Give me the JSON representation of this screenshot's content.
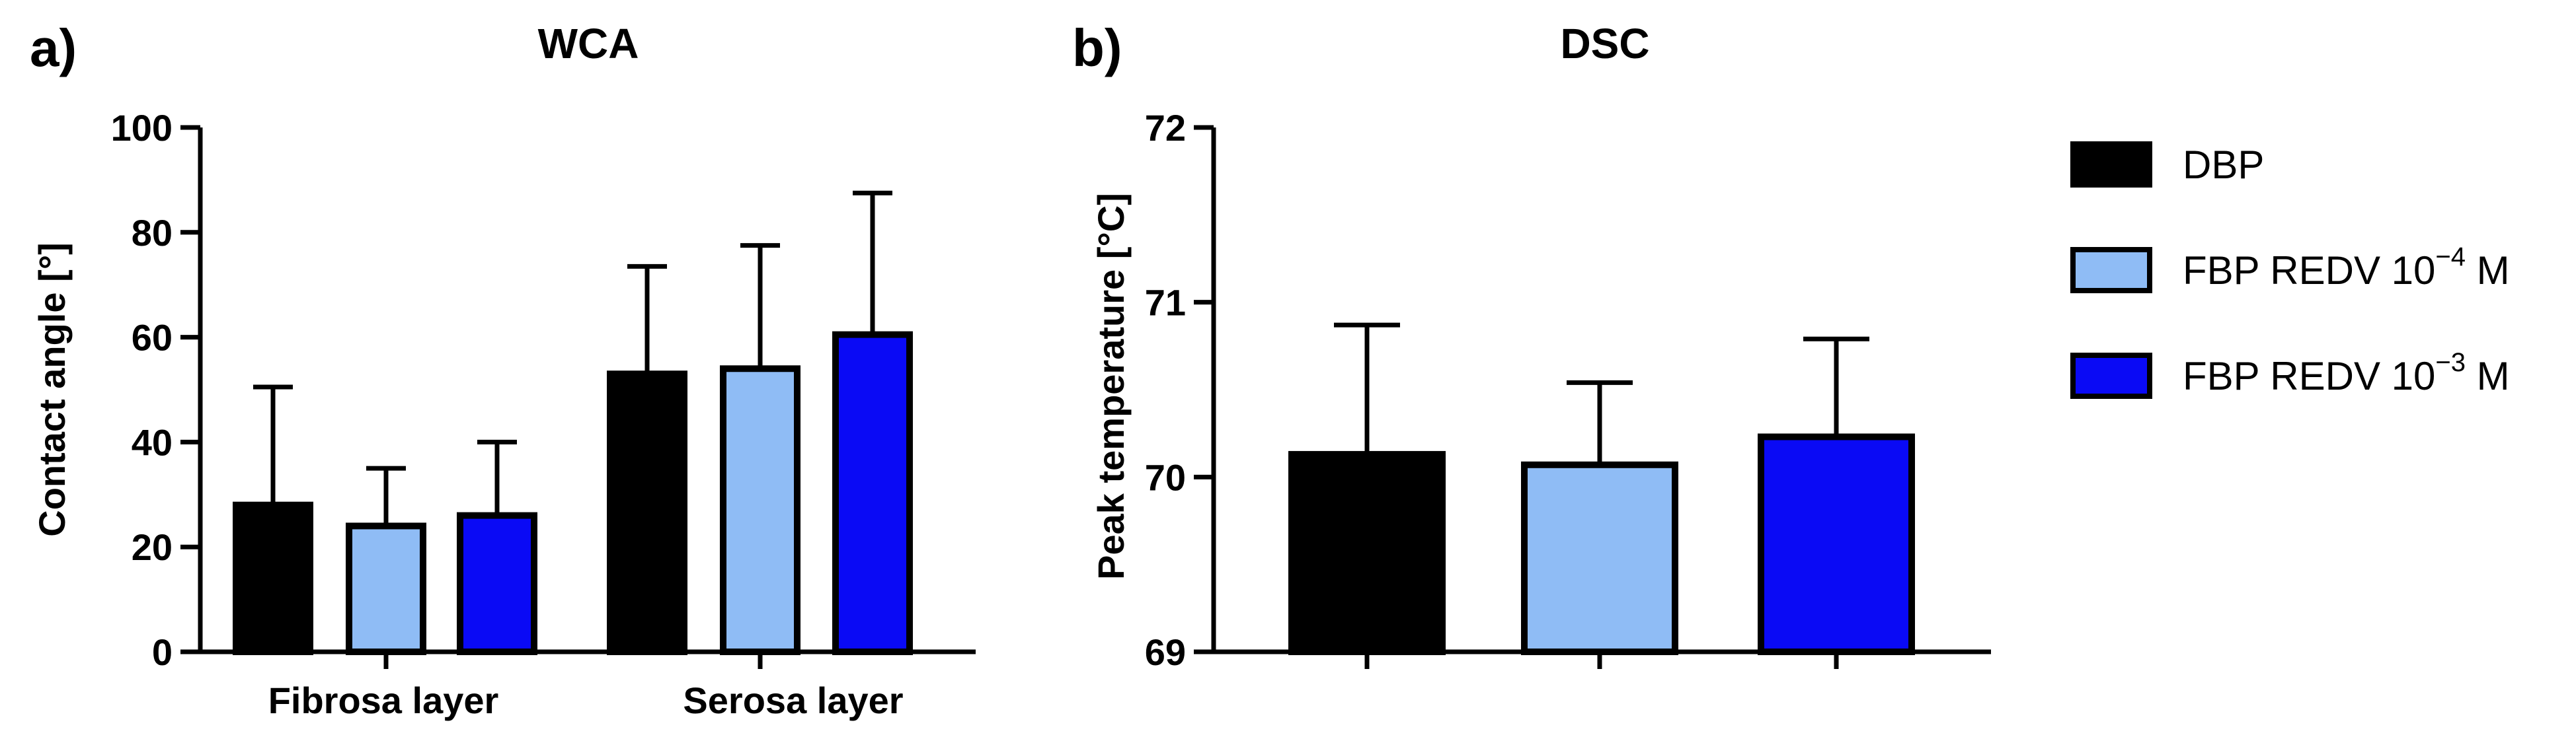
{
  "chart_data": [
    {
      "panel": "a)",
      "type": "bar",
      "title": "WCA",
      "xlabel": "",
      "ylabel": "Contact angle [°]",
      "ylim": [
        0,
        100
      ],
      "yticks": [
        "0",
        "20",
        "40",
        "60",
        "80",
        "100"
      ],
      "categories": [
        "Fibrosa layer",
        "Serosa layer"
      ],
      "series": [
        {
          "name": "DBP",
          "values": [
            28,
            53
          ],
          "errors": [
            22.5,
            20.5
          ]
        },
        {
          "name": "FBP REDV 10^-4 M",
          "values": [
            24,
            54
          ],
          "errors": [
            11,
            23.5
          ]
        },
        {
          "name": "FBP REDV 10^-3 M",
          "values": [
            26,
            60.5
          ],
          "errors": [
            14,
            27
          ]
        }
      ]
    },
    {
      "panel": "b)",
      "type": "bar",
      "title": "DSC",
      "xlabel": "",
      "ylabel": "Peak temperature [°C]",
      "ylim": [
        69,
        72
      ],
      "yticks": [
        "69",
        "70",
        "71",
        "72"
      ],
      "categories": [
        ""
      ],
      "series": [
        {
          "name": "DBP",
          "values": [
            70.13
          ],
          "errors": [
            0.74
          ]
        },
        {
          "name": "FBP REDV 10^-4 M",
          "values": [
            70.07
          ],
          "errors": [
            0.47
          ]
        },
        {
          "name": "FBP REDV 10^-3 M",
          "values": [
            70.23
          ],
          "errors": [
            0.56
          ]
        }
      ]
    }
  ],
  "legend": [
    {
      "base": "DBP",
      "sup": "",
      "unit": "",
      "color": "#000000"
    },
    {
      "base": "FBP REDV 10",
      "sup": "−4",
      "unit": " M",
      "color": "#8fbcf5"
    },
    {
      "base": "FBP REDV 10",
      "sup": "−3",
      "unit": " M",
      "color": "#0a0af5"
    }
  ],
  "colors": [
    "#000000",
    "#8fbcf5",
    "#0a0af5"
  ]
}
